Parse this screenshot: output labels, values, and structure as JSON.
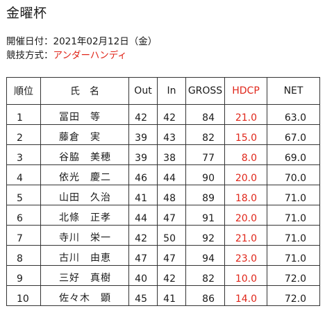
{
  "page": {
    "title": "金曜杯"
  },
  "meta": {
    "date_label": "開催日付：",
    "date_value": "2021年02月12日（金）",
    "format_label": "競技方式：",
    "format_value": "アンダーハンディ"
  },
  "table": {
    "headers": {
      "rank": "順位",
      "name": "氏　名",
      "out": "Out",
      "in": "In",
      "gross": "GROSS",
      "hdcp": "HDCP",
      "net": "NET"
    },
    "rows": [
      {
        "rank": "1",
        "name": "冨田　等",
        "out": "42",
        "in": "42",
        "gross": "84",
        "hdcp": "21.0",
        "net": "63.0"
      },
      {
        "rank": "2",
        "name": "藤倉　実",
        "out": "39",
        "in": "43",
        "gross": "82",
        "hdcp": "15.0",
        "net": "67.0"
      },
      {
        "rank": "3",
        "name": "谷脇　美穂",
        "out": "39",
        "in": "38",
        "gross": "77",
        "hdcp": "8.0",
        "net": "69.0"
      },
      {
        "rank": "4",
        "name": "依光　慶二",
        "out": "46",
        "in": "44",
        "gross": "90",
        "hdcp": "20.0",
        "net": "70.0"
      },
      {
        "rank": "5",
        "name": "山田　久治",
        "out": "41",
        "in": "48",
        "gross": "89",
        "hdcp": "18.0",
        "net": "71.0"
      },
      {
        "rank": "6",
        "name": "北條　正孝",
        "out": "44",
        "in": "47",
        "gross": "91",
        "hdcp": "20.0",
        "net": "71.0"
      },
      {
        "rank": "7",
        "name": "寺川　栄一",
        "out": "42",
        "in": "50",
        "gross": "92",
        "hdcp": "21.0",
        "net": "71.0"
      },
      {
        "rank": "8",
        "name": "古川　由恵",
        "out": "47",
        "in": "47",
        "gross": "94",
        "hdcp": "23.0",
        "net": "71.0"
      },
      {
        "rank": "9",
        "name": "三好　真樹",
        "out": "40",
        "in": "42",
        "gross": "82",
        "hdcp": "10.0",
        "net": "72.0"
      },
      {
        "rank": "10",
        "name": "佐々木　顕",
        "out": "45",
        "in": "41",
        "gross": "86",
        "hdcp": "14.0",
        "net": "72.0"
      }
    ]
  },
  "colors": {
    "accent_red": "#e0261a",
    "border": "#333333",
    "text": "#1a1a1a"
  }
}
